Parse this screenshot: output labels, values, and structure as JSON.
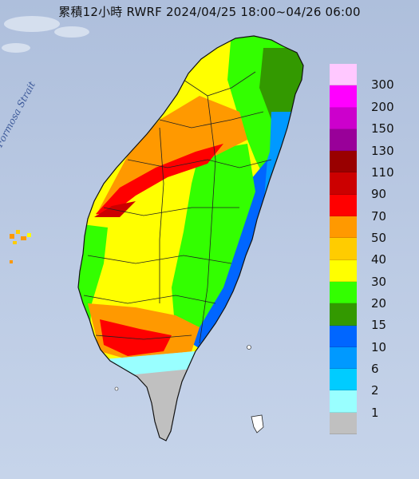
{
  "title": "累積12小時 RWRF 2024/04/25 18:00~04/26 06:00",
  "strait_label": "Formosa Strait",
  "legend": [
    {
      "value": "300",
      "color": "#ffc8ff"
    },
    {
      "value": "200",
      "color": "#ff00ff"
    },
    {
      "value": "150",
      "color": "#cc00cc"
    },
    {
      "value": "130",
      "color": "#990099"
    },
    {
      "value": "110",
      "color": "#990000"
    },
    {
      "value": "90",
      "color": "#cc0000"
    },
    {
      "value": "70",
      "color": "#ff0000"
    },
    {
      "value": "50",
      "color": "#ff9900"
    },
    {
      "value": "40",
      "color": "#ffcc00"
    },
    {
      "value": "30",
      "color": "#ffff00"
    },
    {
      "value": "20",
      "color": "#33ff00"
    },
    {
      "value": "15",
      "color": "#339900"
    },
    {
      "value": "10",
      "color": "#0066ff"
    },
    {
      "value": "6",
      "color": "#0099ff"
    },
    {
      "value": "2",
      "color": "#00ccff"
    },
    {
      "value": "1",
      "color": "#99ffff"
    },
    {
      "value": "",
      "color": "#c0c0c0"
    }
  ]
}
